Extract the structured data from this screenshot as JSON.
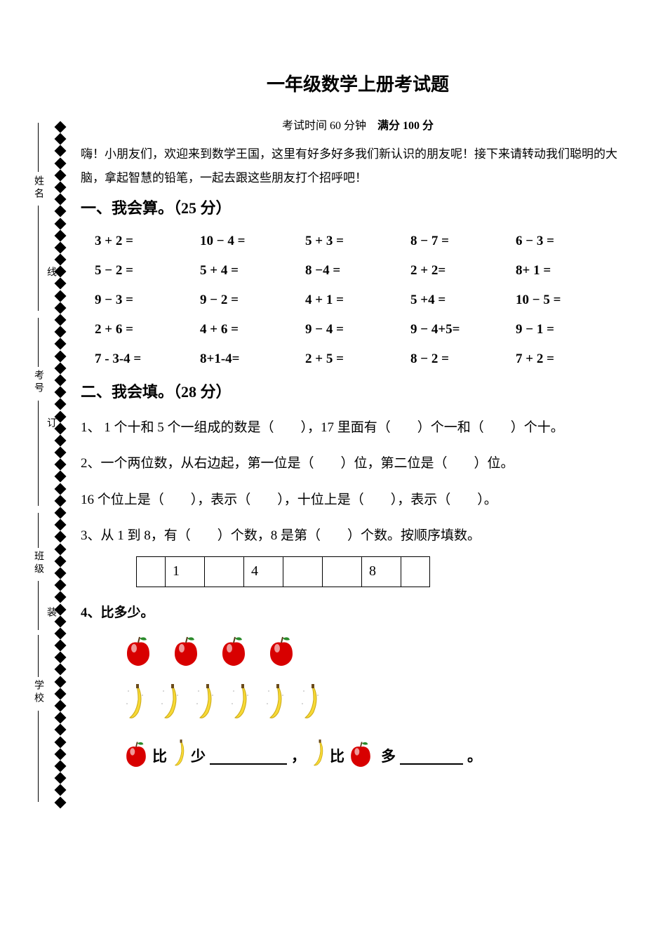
{
  "title": "一年级数学上册考试题",
  "subtitle_left": "考试时间 60 分钟",
  "subtitle_right": "满分 100 分",
  "intro": "嗨！小朋友们，欢迎来到数学王国，这里有好多好多我们新认识的朋友呢！接下来请转动我们聪明的大脑，拿起智慧的铅笔，一起去跟这些朋友打个招呼吧！",
  "binding": {
    "school": "学校",
    "class": "班级",
    "exam_no": "考号",
    "name": "姓名",
    "zhuang": "装",
    "ding": "订",
    "xian": "线"
  },
  "section1": {
    "title": "一、我会算。（25 分）",
    "rows": [
      [
        "3 + 2 =",
        "10 − 4 =",
        "5 + 3 =",
        "8 − 7 =",
        "6 − 3 ="
      ],
      [
        "5 − 2 =",
        "5 + 4 =",
        "8 −4 =",
        "2 + 2=",
        "8+ 1 ="
      ],
      [
        "9 − 3 =",
        "9 − 2 =",
        "4 + 1 =",
        "5 +4 =",
        "10 − 5 ="
      ],
      [
        "2 + 6 =",
        "4 + 6 =",
        "9 − 4 =",
        "9 − 4+5=",
        "9 − 1 ="
      ],
      [
        "7 - 3-4 =",
        "8+1-4=",
        "2 + 5 =",
        "8 − 2 =",
        "7 + 2 ="
      ]
    ]
  },
  "section2": {
    "title": "二、我会填。（28 分）",
    "q1": "1、 1 个十和 5 个一组成的数是（　　），17 里面有（　　）个一和（　　）个十。",
    "q2a": "2、一个两位数，从右边起，第一位是（　　）位，第二位是（　　）位。",
    "q2b": "16 个位上是（　　），表示（　　），十位上是（　　），表示（　　）。",
    "q3": "3、从 1 到 8，有（　　）个数，8 是第（　　）个数。按顺序填数。",
    "seq": [
      "",
      "1",
      "",
      "4",
      "",
      "",
      "8",
      ""
    ],
    "q4": "4、比多少。",
    "apples": 4,
    "bananas": 6,
    "compare_bi": "比",
    "compare_shao": "少",
    "compare_duo": "多",
    "compare_comma": "，",
    "compare_period": "。"
  },
  "colors": {
    "apple_red": "#d80000",
    "apple_leaf": "#2a8a2a",
    "apple_shine": "#ffffff",
    "banana_yellow": "#f7d935",
    "banana_tip": "#6a4a1a"
  }
}
